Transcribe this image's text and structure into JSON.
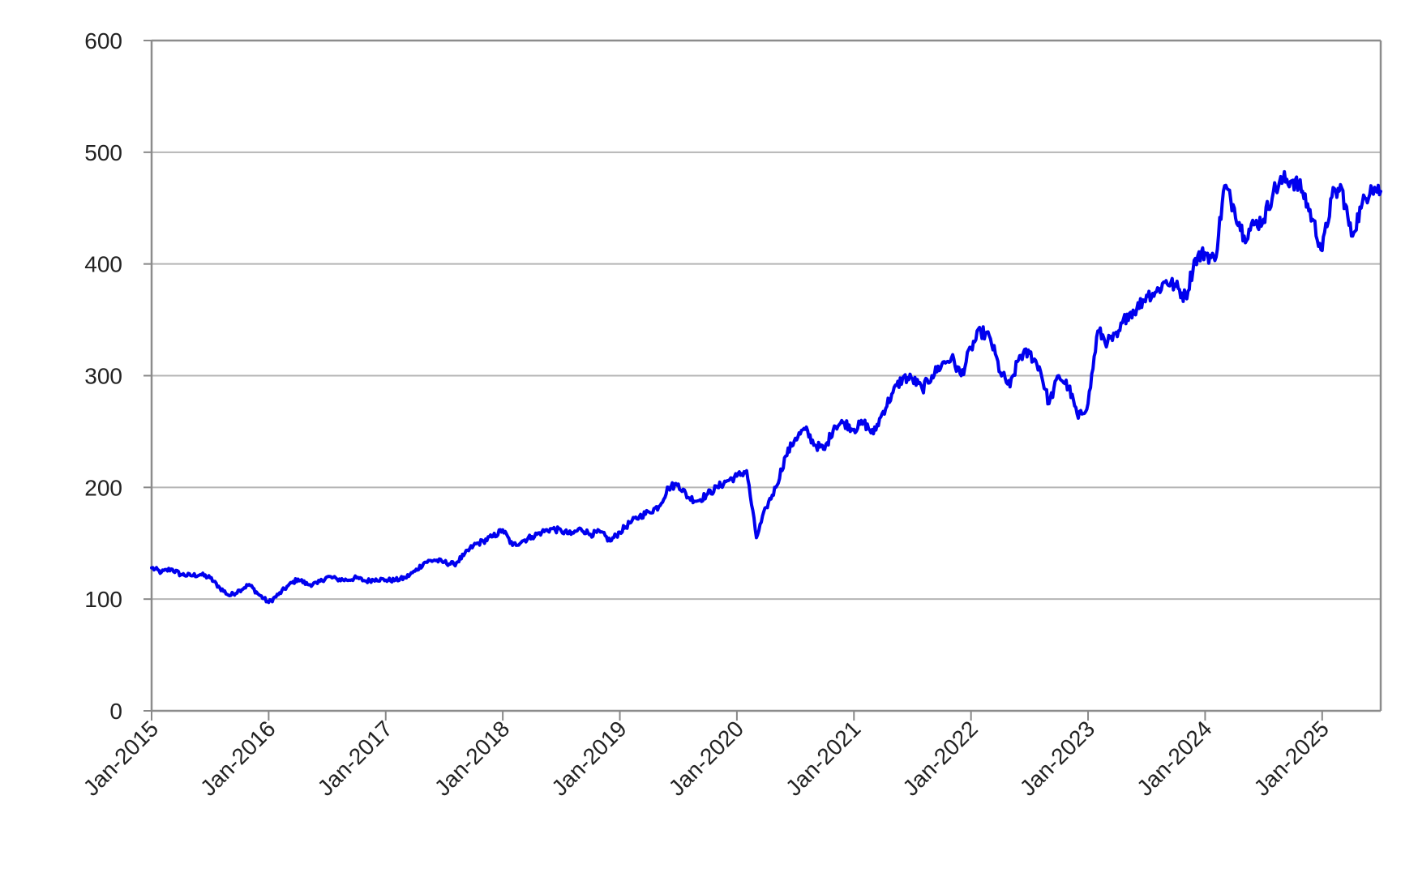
{
  "chart_data": {
    "type": "line",
    "title": "",
    "xlabel": "",
    "ylabel": "",
    "ylim": [
      0,
      600
    ],
    "xlim": [
      "2015-01",
      "2025-07"
    ],
    "grid": "horizontal",
    "legend": "none",
    "y_ticks": [
      "0",
      "100",
      "200",
      "300",
      "400",
      "500",
      "600"
    ],
    "x_ticks": [
      "Jan-2015",
      "Jan-2016",
      "Jan-2017",
      "Jan-2018",
      "Jan-2019",
      "Jan-2020",
      "Jan-2021",
      "Jan-2022",
      "Jan-2023",
      "Jan-2024",
      "Jan-2025"
    ],
    "series": [
      {
        "color": "#0000ee",
        "x": [
          "2015-01",
          "2015-02",
          "2015-03",
          "2015-04",
          "2015-05",
          "2015-06",
          "2015-07",
          "2015-08",
          "2015-09",
          "2015-10",
          "2015-11",
          "2015-12",
          "2016-01",
          "2016-02",
          "2016-03",
          "2016-04",
          "2016-05",
          "2016-06",
          "2016-07",
          "2016-08",
          "2016-09",
          "2016-10",
          "2016-11",
          "2016-12",
          "2017-01",
          "2017-02",
          "2017-03",
          "2017-04",
          "2017-05",
          "2017-06",
          "2017-07",
          "2017-08",
          "2017-09",
          "2017-10",
          "2017-11",
          "2017-12",
          "2018-01",
          "2018-02",
          "2018-03",
          "2018-04",
          "2018-05",
          "2018-06",
          "2018-07",
          "2018-08",
          "2018-09",
          "2018-10",
          "2018-11",
          "2018-12",
          "2019-01",
          "2019-02",
          "2019-03",
          "2019-04",
          "2019-05",
          "2019-06",
          "2019-07",
          "2019-08",
          "2019-09",
          "2019-10",
          "2019-11",
          "2019-12",
          "2020-01",
          "2020-02",
          "2020-03",
          "2020-04",
          "2020-05",
          "2020-06",
          "2020-07",
          "2020-08",
          "2020-09",
          "2020-10",
          "2020-11",
          "2020-12",
          "2021-01",
          "2021-02",
          "2021-03",
          "2021-04",
          "2021-05",
          "2021-06",
          "2021-07",
          "2021-08",
          "2021-09",
          "2021-10",
          "2021-11",
          "2021-12",
          "2022-01",
          "2022-02",
          "2022-03",
          "2022-04",
          "2022-05",
          "2022-06",
          "2022-07",
          "2022-08",
          "2022-09",
          "2022-10",
          "2022-11",
          "2022-12",
          "2023-01",
          "2023-02",
          "2023-03",
          "2023-04",
          "2023-05",
          "2023-06",
          "2023-07",
          "2023-08",
          "2023-09",
          "2023-10",
          "2023-11",
          "2023-12",
          "2024-01",
          "2024-02",
          "2024-03",
          "2024-04",
          "2024-05",
          "2024-06",
          "2024-07",
          "2024-08",
          "2024-09",
          "2024-10",
          "2024-11",
          "2024-12",
          "2025-01",
          "2025-02",
          "2025-03",
          "2025-04",
          "2025-05",
          "2025-06",
          "2025-07"
        ],
        "values": [
          128,
          124,
          127,
          122,
          121,
          122,
          119,
          110,
          103,
          108,
          113,
          104,
          97,
          104,
          112,
          118,
          113,
          114,
          120,
          118,
          117,
          119,
          116,
          118,
          117,
          117,
          119,
          125,
          133,
          135,
          133,
          131,
          139,
          148,
          152,
          156,
          162,
          148,
          152,
          156,
          160,
          163,
          161,
          158,
          163,
          158,
          160,
          152,
          160,
          168,
          174,
          178,
          183,
          200,
          203,
          191,
          188,
          194,
          200,
          206,
          210,
          215,
          155,
          182,
          200,
          228,
          244,
          252,
          238,
          234,
          255,
          258,
          252,
          258,
          248,
          268,
          285,
          298,
          297,
          288,
          300,
          310,
          316,
          300,
          325,
          340,
          333,
          303,
          290,
          318,
          320,
          308,
          275,
          300,
          290,
          262,
          275,
          340,
          330,
          335,
          355,
          360,
          372,
          375,
          385,
          380,
          370,
          405,
          410,
          403,
          470,
          450,
          425,
          435,
          440,
          465,
          475,
          475,
          465,
          440,
          412,
          460,
          468,
          425,
          450,
          470,
          465
        ]
      }
    ]
  }
}
